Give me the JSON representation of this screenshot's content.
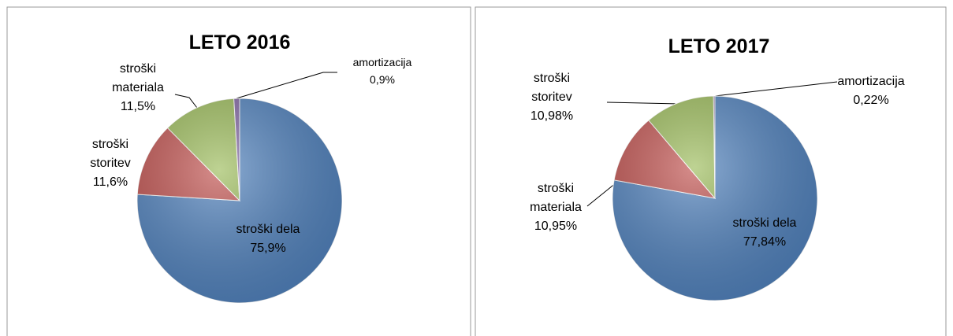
{
  "chart_data": [
    {
      "type": "pie",
      "title": "LETO 2016",
      "categories": [
        "stroški dela",
        "stroški storitev",
        "stroški materiala",
        "amortizacija"
      ],
      "values": [
        75.9,
        11.6,
        11.5,
        0.9
      ],
      "value_labels": [
        "75,9%",
        "11,6%",
        "11,5%",
        "0,9%"
      ],
      "colors": [
        "#4f81bd",
        "#c0504d",
        "#9bbb59",
        "#8064a2"
      ]
    },
    {
      "type": "pie",
      "title": "LETO 2017",
      "categories": [
        "stroški dela",
        "stroški materiala",
        "stroški storitev",
        "amortizacija"
      ],
      "values": [
        77.84,
        10.95,
        10.98,
        0.22
      ],
      "value_labels": [
        "77,84%",
        "10,95%",
        "10,98%",
        "0,22%"
      ],
      "colors": [
        "#4f81bd",
        "#c0504d",
        "#9bbb59",
        "#8064a2"
      ]
    }
  ]
}
